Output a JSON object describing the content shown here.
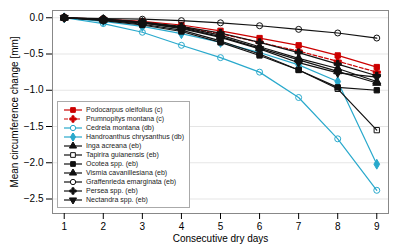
{
  "chart_data": {
    "type": "line",
    "xlabel": "Consecutive dry days",
    "ylabel": "Mean circumference change [mm]",
    "x": [
      1,
      2,
      3,
      4,
      5,
      6,
      7,
      8,
      9
    ],
    "series": [
      {
        "name": "Podocarpus oleifolius (c)",
        "color": "#cc0000",
        "line_style": "solid",
        "marker": "square",
        "values": [
          0.0,
          -0.02,
          -0.05,
          -0.1,
          -0.18,
          -0.28,
          -0.38,
          -0.52,
          -0.68
        ]
      },
      {
        "name": "Prumnopitys montana (c)",
        "color": "#cc0000",
        "line_style": "dashed",
        "marker": "plus",
        "values": [
          0.0,
          -0.03,
          -0.07,
          -0.13,
          -0.22,
          -0.34,
          -0.46,
          -0.6,
          -0.75
        ]
      },
      {
        "name": "Cedrela montana (db)",
        "color": "#29a9cc",
        "line_style": "solid",
        "marker": "circle-open",
        "values": [
          0.0,
          -0.08,
          -0.2,
          -0.38,
          -0.55,
          -0.75,
          -1.1,
          -1.67,
          -2.38
        ]
      },
      {
        "name": "Handroanthus chrysanthus (db)",
        "color": "#29a9cc",
        "line_style": "solid",
        "marker": "diamond",
        "values": [
          0.0,
          -0.05,
          -0.12,
          -0.22,
          -0.34,
          -0.48,
          -0.65,
          -0.88,
          -2.02
        ]
      },
      {
        "name": "Inga acreana (eb)",
        "color": "#111111",
        "line_style": "solid",
        "marker": "triangle-up",
        "values": [
          0.0,
          -0.02,
          -0.06,
          -0.13,
          -0.24,
          -0.4,
          -0.56,
          -0.7,
          -0.88
        ]
      },
      {
        "name": "Tapirira guianensis (eb)",
        "color": "#111111",
        "line_style": "solid",
        "marker": "square-open",
        "values": [
          0.0,
          -0.03,
          -0.09,
          -0.17,
          -0.32,
          -0.5,
          -0.72,
          -0.98,
          -1.55
        ]
      },
      {
        "name": "Ocotea spp. (eb)",
        "color": "#111111",
        "line_style": "solid",
        "marker": "square",
        "values": [
          0.0,
          -0.04,
          -0.1,
          -0.19,
          -0.34,
          -0.52,
          -0.72,
          -0.96,
          -1.0
        ]
      },
      {
        "name": "Vismia cavanillesiana (eb)",
        "color": "#111111",
        "line_style": "solid",
        "marker": "triangle-up",
        "values": [
          0.0,
          -0.03,
          -0.07,
          -0.14,
          -0.26,
          -0.42,
          -0.58,
          -0.74,
          -0.9
        ]
      },
      {
        "name": "Graffenrieda emarginata (eb)",
        "color": "#111111",
        "line_style": "solid",
        "marker": "circle-open",
        "values": [
          0.0,
          -0.01,
          -0.02,
          -0.04,
          -0.07,
          -0.11,
          -0.16,
          -0.21,
          -0.28
        ]
      },
      {
        "name": "Persea spp. (eb)",
        "color": "#111111",
        "line_style": "solid",
        "marker": "plus",
        "values": [
          0.0,
          -0.02,
          -0.06,
          -0.12,
          -0.21,
          -0.34,
          -0.48,
          -0.64,
          -0.8
        ]
      },
      {
        "name": "Nectandra spp. (eb)",
        "color": "#111111",
        "line_style": "solid",
        "marker": "triangle-down",
        "values": [
          0.0,
          -0.03,
          -0.07,
          -0.15,
          -0.27,
          -0.43,
          -0.62,
          -0.76,
          -0.82
        ]
      }
    ],
    "xlim": [
      0.7,
      9.3
    ],
    "ylim": [
      -2.7,
      0.1
    ],
    "xticks": [
      1,
      2,
      3,
      4,
      5,
      6,
      7,
      8,
      9
    ],
    "yticks": [
      {
        "value": 0.0,
        "label": "0.0"
      },
      {
        "value": -0.5,
        "label": "−0.5"
      },
      {
        "value": -1.0,
        "label": "−1.0"
      },
      {
        "value": -1.5,
        "label": "−1.5"
      },
      {
        "value": -2.0,
        "label": "−2.0"
      },
      {
        "value": -2.5,
        "label": "−2.5"
      }
    ],
    "grid": "y",
    "legend": "lower left"
  }
}
